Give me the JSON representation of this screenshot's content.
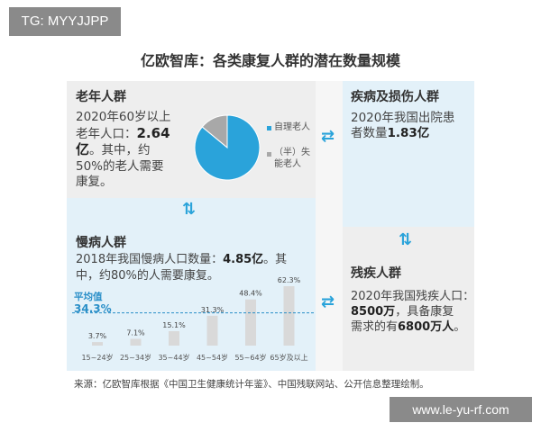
{
  "watermark_top": "TG: MYYJJPP",
  "watermark_bottom": "www.le-yu-rf.com",
  "title": "亿欧智库：各类康复人群的潜在数量规模",
  "elderly": {
    "heading": "老年人群",
    "line1": "2020年60岁以上",
    "line2_pre": "老年人口：",
    "line2_bold": "2.64",
    "line3_bold": "亿",
    "line3_rest": "。其中，约",
    "line4": "50%的老人需要",
    "line5": "康复。"
  },
  "injury": {
    "heading": "疾病及损伤人群",
    "line1": "2020年我国出院患",
    "line2_pre": "者数量",
    "line2_bold": "1.83亿"
  },
  "chronic": {
    "heading": "慢病人群",
    "line1_pre": "2018年我国慢病人口数量：",
    "line1_bold": "4.85亿",
    "line1_post": "。其",
    "line2": "中，约80%的人需要康复。"
  },
  "disabled": {
    "heading": "残疾人群",
    "line1": "2020年我国残疾人口：",
    "line2_bold": "8500万",
    "line2_rest": "，具备康复",
    "line3_pre": "需求的有",
    "line3_bold": "6800万人",
    "line3_post": "。"
  },
  "source": "来源：亿欧智库根据《中国卫生健康统计年鉴》、中国残联网站、公开信息整理绘制。",
  "colors": {
    "accent": "#2aa3da",
    "pie_main": "#2aa3da",
    "pie_minor": "#a8a8a8",
    "bar": "#d9d9d9",
    "avg_line": "#2a8fc8"
  },
  "chart_data": [
    {
      "type": "pie",
      "slices": [
        {
          "label": "自理老人",
          "value": 86
        },
        {
          "label": "（半）失能老人",
          "value": 14
        }
      ],
      "legend": [
        {
          "line1": "自理老人",
          "line2": ""
        },
        {
          "line1": "（半）失",
          "line2": "能老人"
        }
      ]
    },
    {
      "type": "bar",
      "categories": [
        "15~24岁",
        "25~34岁",
        "35~44岁",
        "45~54岁",
        "55~64岁",
        "65岁及以上"
      ],
      "values": [
        3.7,
        7.1,
        15.1,
        31.3,
        48.4,
        62.3
      ],
      "value_labels": [
        "3.7%",
        "7.1%",
        "15.1%",
        "31.3%",
        "48.4%",
        "62.3%"
      ],
      "ylim": [
        0,
        62.3
      ],
      "average": {
        "label": "平均值",
        "value": 34.3,
        "display": "34.3%"
      }
    }
  ]
}
